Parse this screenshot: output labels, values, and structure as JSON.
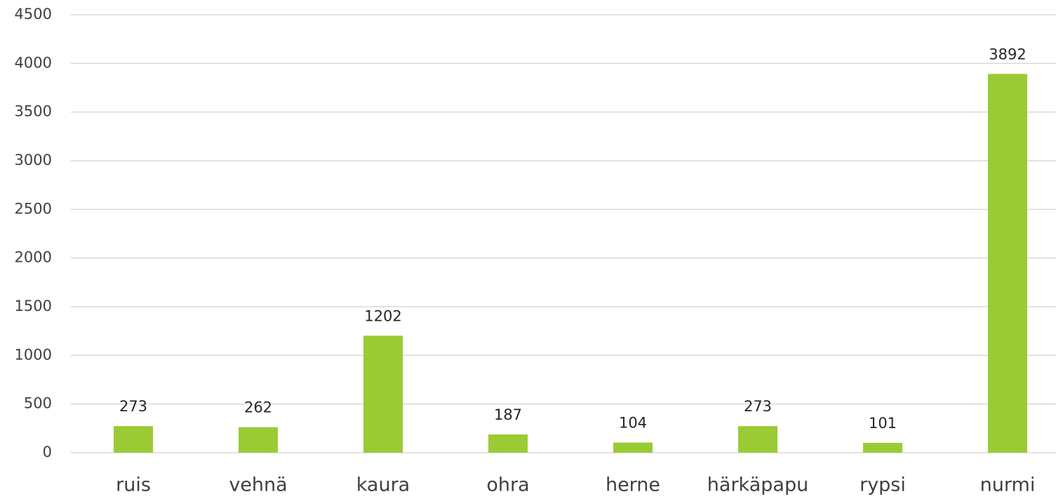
{
  "chart_data": {
    "type": "bar",
    "categories": [
      "ruis",
      "vehnä",
      "kaura",
      "ohra",
      "herne",
      "härkäpapu",
      "rypsi",
      "nurmi"
    ],
    "values": [
      273,
      262,
      1202,
      187,
      104,
      273,
      101,
      3892
    ],
    "color": "#9acb34",
    "ylim": [
      0,
      4500
    ],
    "yticks": [
      0,
      500,
      1000,
      1500,
      2000,
      2500,
      3000,
      3500,
      4000,
      4500
    ],
    "grid": true
  }
}
